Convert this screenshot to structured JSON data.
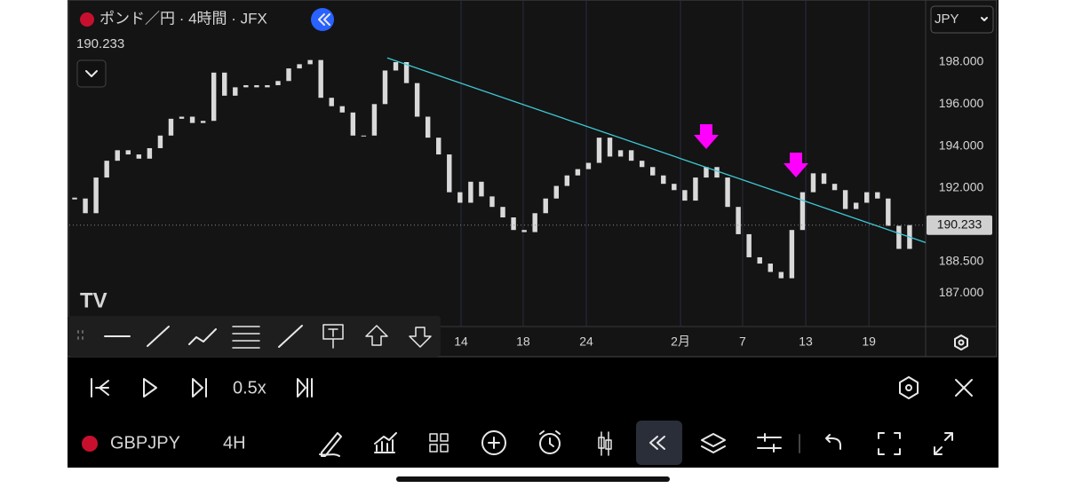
{
  "chart_data": {
    "type": "candlestick",
    "title": "ポンド／円 · 4時間 · JFX",
    "currency": "JPY",
    "last_price": 190.233,
    "close": [
      191.5,
      190.8,
      192.5,
      193.3,
      193.8,
      193.6,
      193.4,
      193.9,
      194.5,
      195.3,
      195.4,
      195.1,
      195.2,
      197.5,
      196.4,
      196.8,
      196.9,
      196.8,
      196.9,
      197.1,
      197.7,
      197.9,
      198.1,
      196.3,
      195.9,
      195.6,
      194.5,
      194.5,
      196,
      197.6,
      198.0,
      197,
      195.4,
      194.4,
      193.6,
      191.8,
      191.3,
      192.3,
      191.6,
      191.1,
      190.6,
      190.0,
      189.9,
      190.8,
      191.5,
      192.1,
      192.6,
      192.9,
      193.2,
      194.4,
      193.5,
      193.8,
      193.3,
      193.0,
      192.6,
      192.2,
      191.9,
      191.4,
      192.5,
      193.0,
      192.5,
      191.1,
      189.8,
      188.7,
      188.4,
      188.0,
      187.7,
      190.0,
      191.8,
      192.7,
      192.2,
      191.9,
      191.0,
      191.3,
      191.8,
      191.5,
      190.2,
      189.1,
      190.233
    ],
    "color": "#d9d9d9",
    "xlim": [
      0,
      80
    ],
    "ylim": [
      185.4,
      200.96
    ],
    "yticks": [
      {
        "value": 198,
        "label": "198.000"
      },
      {
        "value": 196,
        "label": "196.000"
      },
      {
        "value": 194,
        "label": "194.000"
      },
      {
        "value": 192,
        "label": "192.000"
      },
      {
        "value": 188.5,
        "label": "188.500"
      },
      {
        "value": 187,
        "label": "187.000"
      }
    ],
    "xticks": [
      {
        "value": 36.6,
        "label": "14"
      },
      {
        "value": 42.4,
        "label": "18"
      },
      {
        "value": 48.3,
        "label": "24"
      },
      {
        "value": 57.1,
        "label": "2月"
      },
      {
        "value": 62.9,
        "label": "7"
      },
      {
        "value": 68.8,
        "label": "13"
      },
      {
        "value": 74.7,
        "label": "19"
      }
    ],
    "trendline": {
      "x": [
        29.7,
        80
      ],
      "y": [
        198.2,
        189.4
      ],
      "color": "#3ec9d6"
    },
    "grid": true
  },
  "controls": {
    "speed": "0.5x"
  },
  "bottom_bar": {
    "symbol": "GBPJPY",
    "interval": "4H"
  }
}
